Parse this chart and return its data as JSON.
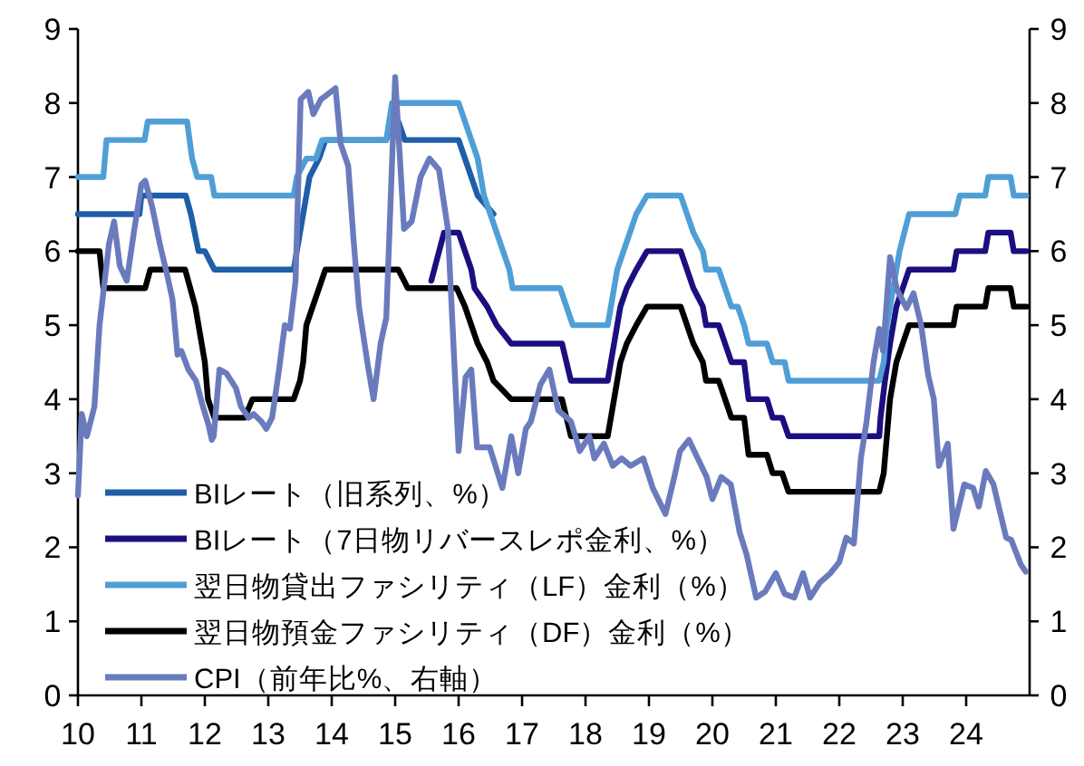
{
  "chart_data": {
    "type": "line",
    "xlim": [
      10,
      25
    ],
    "xticks": [
      10,
      11,
      12,
      13,
      14,
      15,
      16,
      17,
      18,
      19,
      20,
      21,
      22,
      23,
      24
    ],
    "ylim": [
      0,
      9
    ],
    "yticks": [
      0,
      1,
      2,
      3,
      4,
      5,
      6,
      7,
      8,
      9
    ],
    "y2lim": [
      0,
      9
    ],
    "y2ticks": [
      0,
      1,
      2,
      3,
      4,
      5,
      6,
      7,
      8,
      9
    ],
    "legend": "bottom left",
    "series": [
      {
        "name": "BIレート（旧系列、%）",
        "color": "#1f5ea8",
        "x": [
          10,
          10.97,
          11.0,
          11.7,
          11.78,
          11.9,
          12.0,
          12.15,
          13.4,
          13.45,
          13.55,
          13.65,
          13.8,
          13.9,
          14.86,
          14.95,
          15.05,
          15.15,
          16.0,
          16.1,
          16.2,
          16.3,
          16.55
        ],
        "values": [
          6.5,
          6.5,
          6.75,
          6.75,
          6.5,
          6.0,
          6.0,
          5.75,
          5.75,
          6.0,
          6.5,
          7.0,
          7.25,
          7.5,
          7.5,
          7.75,
          7.75,
          7.5,
          7.5,
          7.25,
          7.0,
          6.75,
          6.5
        ]
      },
      {
        "name": "BIレート（7日物リバースレポ金利、%）",
        "color": "#1b0f80",
        "x": [
          15.57,
          15.77,
          16.0,
          16.1,
          16.2,
          16.25,
          16.45,
          16.6,
          16.83,
          17.63,
          17.7,
          17.77,
          18.35,
          18.4,
          18.45,
          18.5,
          18.55,
          18.65,
          18.8,
          18.97,
          19.5,
          19.6,
          19.7,
          19.85,
          19.9,
          20.1,
          20.2,
          20.3,
          20.5,
          20.57,
          20.86,
          20.95,
          21.1,
          21.2,
          22.63,
          22.65,
          22.72,
          22.8,
          22.9,
          23.0,
          23.1,
          23.8,
          23.85,
          24.3,
          24.35,
          24.7,
          24.75,
          24.95
        ],
        "values": [
          5.6,
          6.25,
          6.25,
          6.0,
          5.75,
          5.5,
          5.25,
          5.0,
          4.75,
          4.75,
          4.5,
          4.25,
          4.25,
          4.5,
          4.75,
          5.0,
          5.25,
          5.5,
          5.75,
          6.0,
          6.0,
          5.75,
          5.5,
          5.25,
          5.0,
          5.0,
          4.75,
          4.5,
          4.5,
          4.0,
          4.0,
          3.75,
          3.75,
          3.5,
          3.5,
          3.75,
          4.25,
          4.75,
          5.25,
          5.5,
          5.75,
          5.75,
          6.0,
          6.0,
          6.25,
          6.25,
          6.0,
          6.0
        ]
      },
      {
        "name": "翌日物貸出ファシリティ（LF）金利（%）",
        "color": "#4f9fd6",
        "x": [
          10,
          10.4,
          10.45,
          11.05,
          11.1,
          11.72,
          11.8,
          11.88,
          12.1,
          12.15,
          13.4,
          13.45,
          13.6,
          13.75,
          13.85,
          14.86,
          14.95,
          16.0,
          16.1,
          16.2,
          16.3,
          16.4,
          16.5,
          16.6,
          16.7,
          16.8,
          16.85,
          17.6,
          17.7,
          17.8,
          18.35,
          18.45,
          18.5,
          18.6,
          18.7,
          18.8,
          18.97,
          19.5,
          19.6,
          19.7,
          19.85,
          19.9,
          20.1,
          20.2,
          20.3,
          20.4,
          20.5,
          20.57,
          20.86,
          20.95,
          21.14,
          21.2,
          22.63,
          22.7,
          22.75,
          22.85,
          22.95,
          23.1,
          23.83,
          23.9,
          24.3,
          24.35,
          24.7,
          24.75,
          24.95
        ],
        "values": [
          7.0,
          7.0,
          7.5,
          7.5,
          7.75,
          7.75,
          7.25,
          7.0,
          7.0,
          6.75,
          6.75,
          7.0,
          7.25,
          7.25,
          7.5,
          7.5,
          8.0,
          8.0,
          7.75,
          7.5,
          7.25,
          6.75,
          6.5,
          6.25,
          6.0,
          5.75,
          5.5,
          5.5,
          5.25,
          5.0,
          5.0,
          5.5,
          5.75,
          6.0,
          6.25,
          6.5,
          6.75,
          6.75,
          6.5,
          6.25,
          6.0,
          5.75,
          5.75,
          5.5,
          5.25,
          5.25,
          5.0,
          4.75,
          4.75,
          4.5,
          4.5,
          4.25,
          4.25,
          4.5,
          5.0,
          5.5,
          6.0,
          6.5,
          6.5,
          6.75,
          6.75,
          7.0,
          7.0,
          6.75,
          6.75
        ]
      },
      {
        "name": "翌日物預金ファシリティ（DF）金利（%）",
        "color": "#000000",
        "x": [
          10,
          10.34,
          10.4,
          11.06,
          11.14,
          11.69,
          11.85,
          11.95,
          12.0,
          12.05,
          12.15,
          12.63,
          12.75,
          13.4,
          13.5,
          13.55,
          13.6,
          13.7,
          13.8,
          13.9,
          15.05,
          15.2,
          15.97,
          16.1,
          16.2,
          16.3,
          16.45,
          16.55,
          16.83,
          17.63,
          17.7,
          17.77,
          18.35,
          18.45,
          18.55,
          18.65,
          18.8,
          18.97,
          19.5,
          19.6,
          19.7,
          19.85,
          19.9,
          20.1,
          20.2,
          20.3,
          20.5,
          20.57,
          20.86,
          20.95,
          21.1,
          21.2,
          22.63,
          22.7,
          22.75,
          22.8,
          22.9,
          23.0,
          23.1,
          23.8,
          23.85,
          24.3,
          24.35,
          24.7,
          24.75,
          24.95
        ],
        "values": [
          6.0,
          6.0,
          5.5,
          5.5,
          5.75,
          5.75,
          5.25,
          4.75,
          4.5,
          4.0,
          3.75,
          3.75,
          4.0,
          4.0,
          4.25,
          4.5,
          5.0,
          5.25,
          5.5,
          5.75,
          5.75,
          5.5,
          5.5,
          5.25,
          5.0,
          4.75,
          4.5,
          4.25,
          4.0,
          4.0,
          3.75,
          3.5,
          3.5,
          4.0,
          4.5,
          4.75,
          5.0,
          5.25,
          5.25,
          5.0,
          4.75,
          4.5,
          4.25,
          4.25,
          4.0,
          3.75,
          3.75,
          3.25,
          3.25,
          3.0,
          3.0,
          2.75,
          2.75,
          3.0,
          3.5,
          4.0,
          4.5,
          4.75,
          5.0,
          5.0,
          5.25,
          5.25,
          5.5,
          5.5,
          5.25,
          5.25
        ]
      },
      {
        "name": "CPI（前年比%、右軸）",
        "color": "#6a7bbd",
        "axis": "y2",
        "x": [
          10.0,
          10.06,
          10.14,
          10.26,
          10.34,
          10.49,
          10.57,
          10.66,
          10.77,
          10.89,
          11.0,
          11.06,
          11.17,
          11.29,
          11.4,
          11.49,
          11.57,
          11.63,
          11.74,
          11.86,
          11.97,
          12.06,
          12.11,
          12.14,
          12.23,
          12.34,
          12.49,
          12.57,
          12.69,
          12.77,
          12.89,
          12.97,
          13.06,
          13.17,
          13.26,
          13.34,
          13.43,
          13.51,
          13.63,
          13.71,
          13.83,
          13.91,
          14.06,
          14.14,
          14.26,
          14.34,
          14.43,
          14.57,
          14.66,
          14.77,
          14.86,
          14.94,
          15.0,
          15.14,
          15.26,
          15.4,
          15.54,
          15.69,
          15.83,
          15.91,
          16.0,
          16.11,
          16.2,
          16.29,
          16.49,
          16.69,
          16.83,
          16.94,
          17.06,
          17.14,
          17.29,
          17.43,
          17.57,
          17.77,
          17.91,
          18.06,
          18.14,
          18.29,
          18.43,
          18.57,
          18.71,
          18.91,
          19.06,
          19.26,
          19.4,
          19.49,
          19.63,
          19.77,
          19.91,
          20.0,
          20.14,
          20.29,
          20.43,
          20.54,
          20.69,
          20.83,
          21.0,
          21.14,
          21.29,
          21.43,
          21.54,
          21.69,
          21.86,
          22.0,
          22.11,
          22.23,
          22.34,
          22.43,
          22.54,
          22.63,
          22.69,
          22.8,
          22.91,
          23.06,
          23.17,
          23.29,
          23.4,
          23.49,
          23.57,
          23.71,
          23.8,
          23.97,
          24.11,
          24.2,
          24.31,
          24.43,
          24.63,
          24.71,
          24.86,
          24.94
        ],
        "values": [
          2.7,
          3.8,
          3.5,
          3.9,
          5.0,
          6.1,
          6.4,
          5.8,
          5.6,
          6.3,
          6.9,
          6.95,
          6.6,
          6.1,
          5.7,
          5.35,
          4.6,
          4.65,
          4.4,
          4.25,
          3.9,
          3.65,
          3.45,
          3.5,
          4.4,
          4.35,
          4.15,
          3.9,
          3.75,
          3.8,
          3.7,
          3.6,
          3.75,
          4.4,
          5.0,
          4.95,
          5.6,
          8.05,
          8.15,
          7.85,
          8.05,
          8.1,
          8.2,
          7.45,
          7.15,
          6.2,
          5.25,
          4.45,
          4.0,
          4.75,
          5.1,
          6.95,
          8.35,
          6.3,
          6.4,
          7.0,
          7.25,
          7.1,
          6.3,
          4.9,
          3.3,
          4.3,
          4.4,
          3.35,
          3.35,
          2.8,
          3.5,
          3.0,
          3.6,
          3.7,
          4.2,
          4.4,
          3.85,
          3.7,
          3.3,
          3.5,
          3.2,
          3.4,
          3.1,
          3.2,
          3.1,
          3.2,
          2.8,
          2.45,
          2.95,
          3.3,
          3.45,
          3.2,
          2.95,
          2.65,
          2.95,
          2.85,
          2.2,
          1.9,
          1.32,
          1.4,
          1.65,
          1.37,
          1.32,
          1.65,
          1.32,
          1.52,
          1.65,
          1.8,
          2.13,
          2.05,
          3.2,
          3.7,
          4.5,
          4.95,
          4.65,
          5.92,
          5.48,
          5.23,
          5.43,
          5.0,
          4.33,
          4.0,
          3.1,
          3.4,
          2.25,
          2.85,
          2.8,
          2.55,
          3.03,
          2.85,
          2.13,
          2.1,
          1.77,
          1.67
        ]
      }
    ]
  }
}
